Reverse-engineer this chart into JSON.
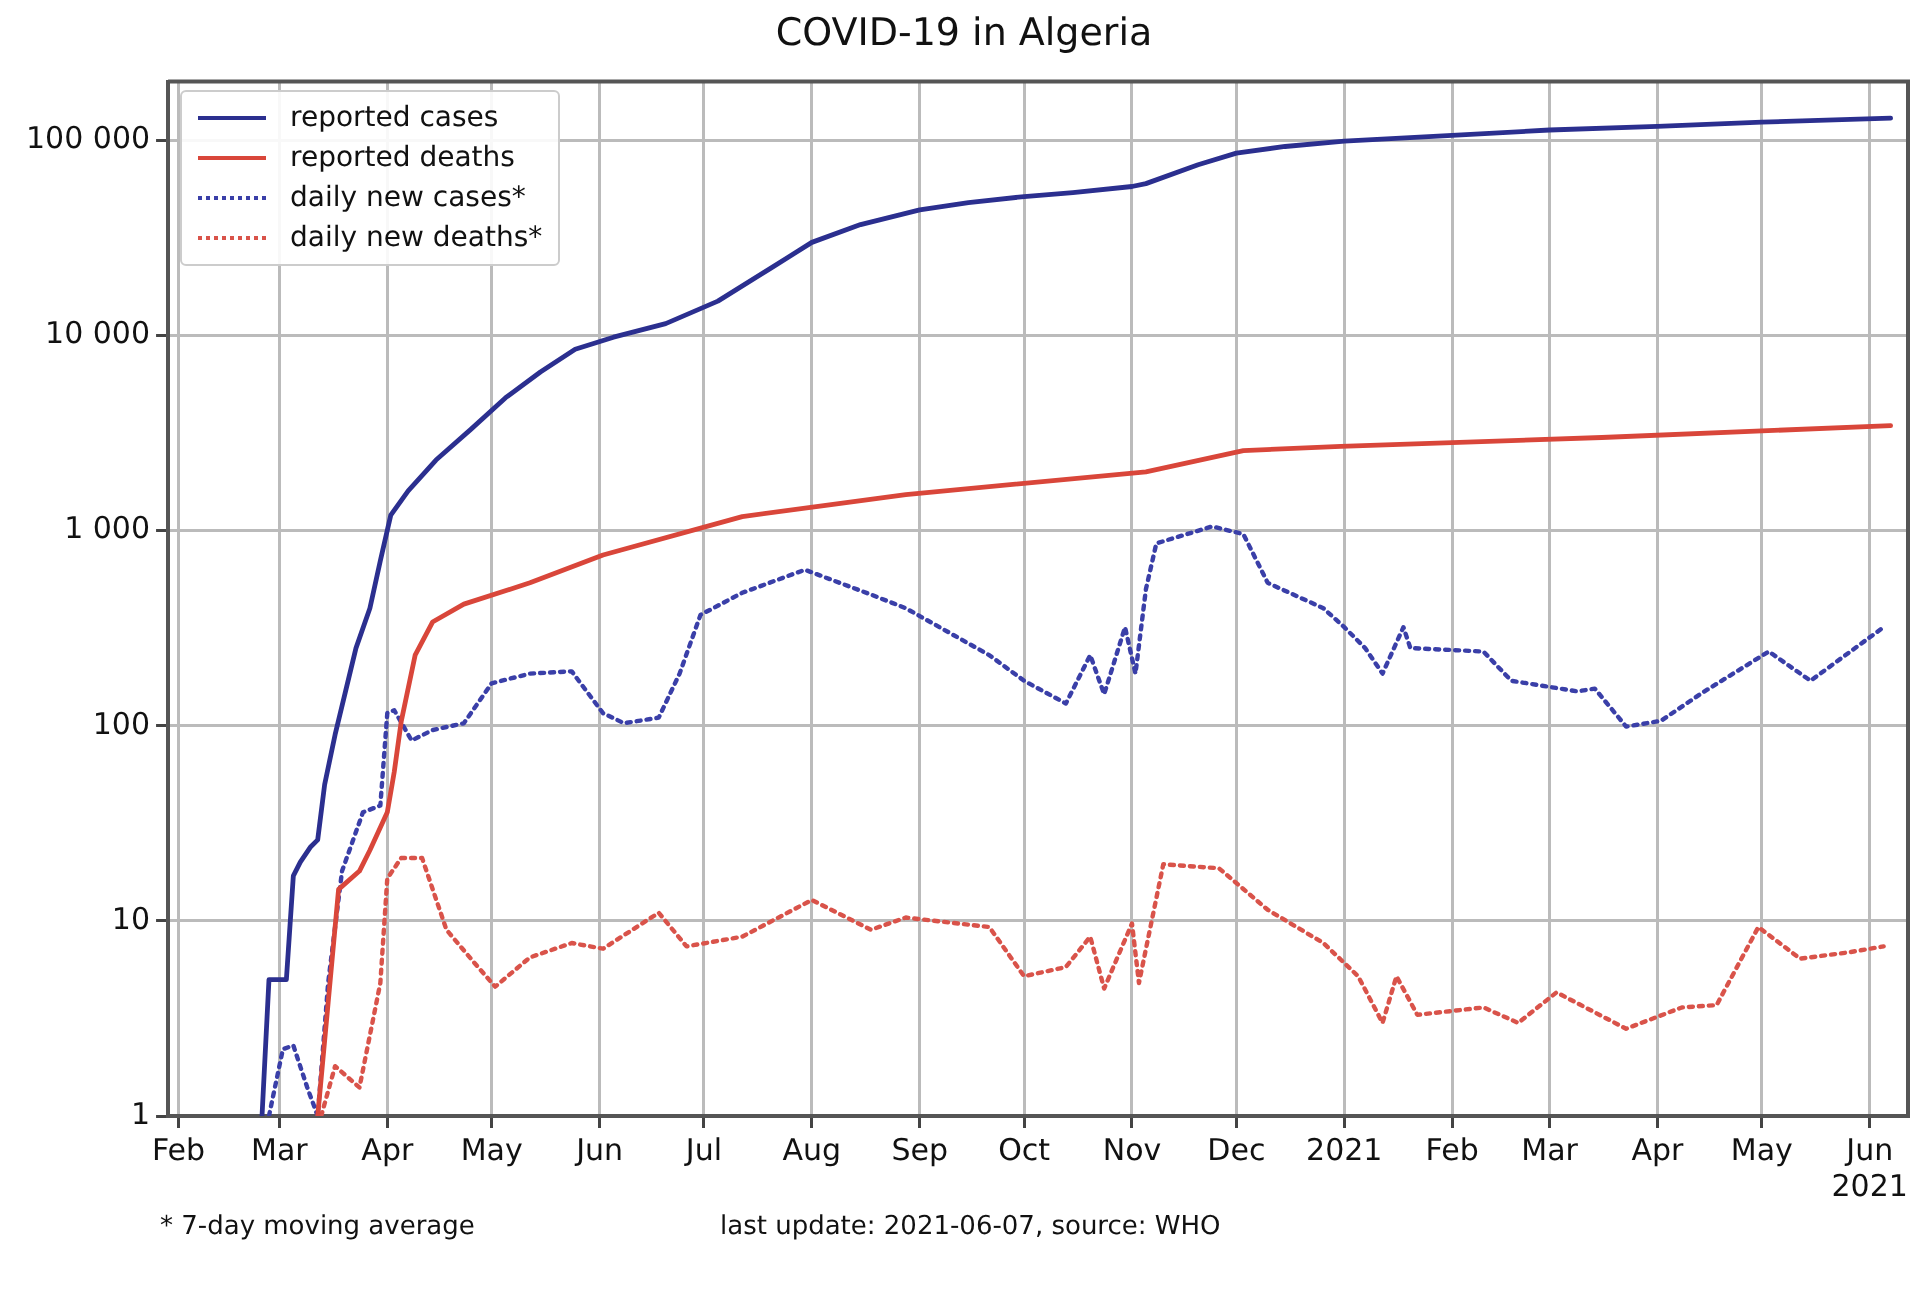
{
  "chart_data": {
    "type": "line",
    "title": "COVID-19 in Algeria",
    "annotations": [
      "* 7-day moving average",
      "last update: 2021-06-07, source: WHO"
    ],
    "log": "y",
    "grid": true,
    "legend": "top left",
    "marker": "none",
    "xlim": [
      "2020-01-29",
      "2021-06-12"
    ],
    "xticks": [
      {
        "value": "2020-02-01",
        "label": "Feb"
      },
      {
        "value": "2020-03-01",
        "label": "Mar"
      },
      {
        "value": "2020-04-01",
        "label": "Apr"
      },
      {
        "value": "2020-05-01",
        "label": "May"
      },
      {
        "value": "2020-06-01",
        "label": "Jun"
      },
      {
        "value": "2020-07-01",
        "label": "Jul"
      },
      {
        "value": "2020-08-01",
        "label": "Aug"
      },
      {
        "value": "2020-09-01",
        "label": "Sep"
      },
      {
        "value": "2020-10-01",
        "label": "Oct"
      },
      {
        "value": "2020-11-01",
        "label": "Nov"
      },
      {
        "value": "2020-12-01",
        "label": "Dec"
      },
      {
        "value": "2021-01-01",
        "label": "2021"
      },
      {
        "value": "2021-02-01",
        "label": "Feb"
      },
      {
        "value": "2021-03-01",
        "label": "Mar"
      },
      {
        "value": "2021-04-01",
        "label": "Apr"
      },
      {
        "value": "2021-05-01",
        "label": "May"
      },
      {
        "value": "2021-06-01",
        "label": "Jun\n2021"
      }
    ],
    "ylim": [
      1,
      200000
    ],
    "yticks": [
      1,
      10,
      100,
      {
        "value": 1000,
        "label": "1 000"
      },
      {
        "value": 10000,
        "label": "10 000"
      },
      {
        "value": 100000,
        "label": "100 000"
      }
    ],
    "series": [
      {
        "name": "reported cases",
        "color": "#2b2f8f",
        "line_style": "solid",
        "x": [
          "2020-02-25",
          "2020-02-27",
          "2020-03-03",
          "2020-03-05",
          "2020-03-07",
          "2020-03-10",
          "2020-03-12",
          "2020-03-14",
          "2020-03-17",
          "2020-03-20",
          "2020-03-23",
          "2020-03-27",
          "2020-03-30",
          "2020-04-02",
          "2020-04-07",
          "2020-04-15",
          "2020-04-25",
          "2020-05-05",
          "2020-05-15",
          "2020-05-25",
          "2020-06-05",
          "2020-06-20",
          "2020-07-05",
          "2020-07-20",
          "2020-08-01",
          "2020-08-15",
          "2020-09-01",
          "2020-09-15",
          "2020-10-01",
          "2020-10-15",
          "2020-11-01",
          "2020-11-05",
          "2020-11-20",
          "2020-12-01",
          "2020-12-15",
          "2021-01-01",
          "2021-02-01",
          "2021-03-01",
          "2021-04-01",
          "2021-05-01",
          "2021-06-07"
        ],
        "values": [
          1,
          5,
          5,
          17,
          20,
          24,
          26,
          50,
          90,
          150,
          250,
          400,
          700,
          1200,
          1600,
          2300,
          3300,
          4800,
          6500,
          8500,
          9800,
          11500,
          15000,
          22000,
          30000,
          37000,
          44000,
          48000,
          51500,
          54000,
          58000,
          60000,
          75000,
          86000,
          93000,
          99000,
          106000,
          113000,
          118000,
          124000,
          130000
        ]
      },
      {
        "name": "reported deaths",
        "color": "#d9463a",
        "line_style": "solid",
        "x": [
          "2020-03-12",
          "2020-03-15",
          "2020-03-18",
          "2020-03-24",
          "2020-03-27",
          "2020-04-01",
          "2020-04-03",
          "2020-04-05",
          "2020-04-09",
          "2020-04-14",
          "2020-04-23",
          "2020-05-12",
          "2020-06-02",
          "2020-07-12",
          "2020-08-28",
          "2020-11-05",
          "2020-12-03",
          "2020-12-31",
          "2021-03-16",
          "2021-06-07"
        ],
        "values": [
          1,
          3.8,
          14.5,
          18,
          23,
          36,
          58,
          105,
          230,
          340,
          420,
          540,
          750,
          1180,
          1530,
          2000,
          2570,
          2700,
          3000,
          3450
        ]
      },
      {
        "name": "daily new cases*",
        "color": "#3a3fa8",
        "line_style": "dotted",
        "x": [
          "2020-02-27",
          "2020-03-02",
          "2020-03-05",
          "2020-03-09",
          "2020-03-12",
          "2020-03-15",
          "2020-03-19",
          "2020-03-25",
          "2020-03-30",
          "2020-04-01",
          "2020-04-03",
          "2020-04-08",
          "2020-04-14",
          "2020-04-23",
          "2020-05-01",
          "2020-05-12",
          "2020-05-24",
          "2020-06-02",
          "2020-06-08",
          "2020-06-18",
          "2020-06-24",
          "2020-06-30",
          "2020-07-12",
          "2020-07-30",
          "2020-08-18",
          "2020-08-28",
          "2020-09-21",
          "2020-10-01",
          "2020-10-13",
          "2020-10-20",
          "2020-10-24",
          "2020-10-30",
          "2020-11-02",
          "2020-11-05",
          "2020-11-08",
          "2020-11-24",
          "2020-12-03",
          "2020-12-10",
          "2020-12-26",
          "2021-01-01",
          "2021-01-07",
          "2021-01-12",
          "2021-01-18",
          "2021-01-20",
          "2021-02-10",
          "2021-02-18",
          "2021-03-09",
          "2021-03-14",
          "2021-03-23",
          "2021-04-02",
          "2021-04-14",
          "2021-05-03",
          "2021-05-15",
          "2021-06-05"
        ],
        "values": [
          1,
          2.2,
          2.3,
          1.4,
          1,
          4.8,
          18,
          36,
          39,
          116,
          120,
          84,
          95,
          103,
          165,
          185,
          190,
          116,
          103,
          110,
          185,
          370,
          480,
          630,
          470,
          400,
          230,
          170,
          130,
          230,
          145,
          320,
          185,
          500,
          860,
          1050,
          960,
          540,
          400,
          320,
          250,
          185,
          320,
          250,
          240,
          170,
          150,
          155,
          99,
          106,
          148,
          240,
          170,
          320
        ]
      },
      {
        "name": "daily new deaths*",
        "color": "#d9534a",
        "line_style": "dotted",
        "x": [
          "2020-03-13",
          "2020-03-17",
          "2020-03-24",
          "2020-03-30",
          "2020-04-01",
          "2020-04-05",
          "2020-04-11",
          "2020-04-18",
          "2020-04-26",
          "2020-05-02",
          "2020-05-12",
          "2020-05-24",
          "2020-06-02",
          "2020-06-18",
          "2020-06-26",
          "2020-07-12",
          "2020-08-01",
          "2020-08-18",
          "2020-08-28",
          "2020-09-21",
          "2020-10-01",
          "2020-10-13",
          "2020-10-20",
          "2020-10-24",
          "2020-11-01",
          "2020-11-03",
          "2020-11-10",
          "2020-11-26",
          "2020-12-10",
          "2020-12-26",
          "2021-01-05",
          "2021-01-12",
          "2021-01-16",
          "2021-01-22",
          "2021-02-10",
          "2021-02-20",
          "2021-03-03",
          "2021-03-23",
          "2021-04-08",
          "2021-04-18",
          "2021-04-30",
          "2021-05-12",
          "2021-05-26",
          "2021-06-05"
        ],
        "values": [
          1,
          1.8,
          1.4,
          4.8,
          16.5,
          21,
          21,
          9,
          6.1,
          4.6,
          6.5,
          7.7,
          7.2,
          11,
          7.4,
          8.3,
          12.8,
          9,
          10.4,
          9.3,
          5.2,
          5.8,
          8.3,
          4.5,
          9.7,
          4.8,
          19.5,
          18.6,
          11.4,
          7.7,
          5.2,
          3,
          5.2,
          3.3,
          3.6,
          3,
          4.3,
          2.8,
          3.6,
          3.7,
          9.3,
          6.4,
          6.9,
          7.4
        ]
      }
    ]
  }
}
